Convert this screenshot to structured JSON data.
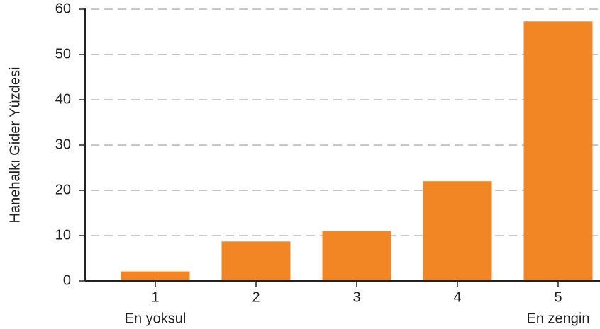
{
  "chart_data": {
    "type": "bar",
    "y_label": "Hanehalkı Gider Yüzdesi",
    "categories": [
      "1",
      "2",
      "3",
      "4",
      "5"
    ],
    "category_sublabels": [
      "En yoksul",
      null,
      null,
      null,
      "En zengin"
    ],
    "values": [
      2.1,
      8.7,
      11,
      22,
      57.3
    ],
    "color": "#f28524",
    "ylim": [
      0,
      60
    ],
    "yticks": [
      0,
      10,
      20,
      30,
      40,
      50,
      60
    ],
    "grid": true
  }
}
